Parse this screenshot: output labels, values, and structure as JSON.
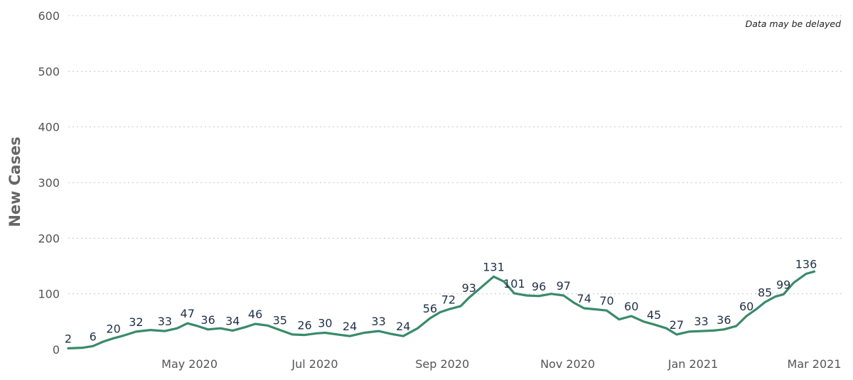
{
  "note": "Data may be delayed",
  "chart_data": {
    "type": "bar",
    "title": "",
    "ylabel": "New Cases",
    "xlabel": "",
    "ylim": [
      0,
      600
    ],
    "yticks": [
      0,
      100,
      200,
      300,
      400,
      500,
      600
    ],
    "ytick_labels": [
      "0",
      "100",
      "200",
      "300",
      "400",
      "500",
      "600"
    ],
    "grid": "horizontal dotted",
    "x_start": "2020-03-03",
    "x_end": "2021-03-06",
    "xticks": [
      {
        "date": "2020-05-01",
        "label": "May 2020"
      },
      {
        "date": "2020-07-01",
        "label": "Jul 2020"
      },
      {
        "date": "2020-09-01",
        "label": "Sep 2020"
      },
      {
        "date": "2020-11-01",
        "label": "Nov 2020"
      },
      {
        "date": "2021-01-01",
        "label": "Jan 2021"
      },
      {
        "date": "2021-03-01",
        "label": "Mar 2021"
      }
    ],
    "colors": {
      "bars": "#8fcbb6",
      "line": "#3a8a6b"
    },
    "series": [
      {
        "type": "line",
        "points": [
          [
            "2020-03-03",
            2
          ],
          [
            "2020-03-10",
            3
          ],
          [
            "2020-03-15",
            6
          ],
          [
            "2020-03-20",
            14
          ],
          [
            "2020-03-25",
            20
          ],
          [
            "2020-03-30",
            25
          ],
          [
            "2020-04-05",
            32
          ],
          [
            "2020-04-12",
            35
          ],
          [
            "2020-04-19",
            33
          ],
          [
            "2020-04-25",
            38
          ],
          [
            "2020-04-30",
            47
          ],
          [
            "2020-05-05",
            42
          ],
          [
            "2020-05-10",
            36
          ],
          [
            "2020-05-16",
            38
          ],
          [
            "2020-05-22",
            34
          ],
          [
            "2020-05-28",
            40
          ],
          [
            "2020-06-02",
            46
          ],
          [
            "2020-06-08",
            43
          ],
          [
            "2020-06-14",
            35
          ],
          [
            "2020-06-20",
            27
          ],
          [
            "2020-06-26",
            26
          ],
          [
            "2020-07-02",
            29
          ],
          [
            "2020-07-06",
            30
          ],
          [
            "2020-07-12",
            27
          ],
          [
            "2020-07-18",
            24
          ],
          [
            "2020-07-25",
            30
          ],
          [
            "2020-08-01",
            33
          ],
          [
            "2020-08-07",
            28
          ],
          [
            "2020-08-13",
            24
          ],
          [
            "2020-08-20",
            38
          ],
          [
            "2020-08-26",
            56
          ],
          [
            "2020-08-31",
            67
          ],
          [
            "2020-09-04",
            72
          ],
          [
            "2020-09-10",
            78
          ],
          [
            "2020-09-14",
            93
          ],
          [
            "2020-09-20",
            112
          ],
          [
            "2020-09-26",
            131
          ],
          [
            "2020-10-01",
            122
          ],
          [
            "2020-10-06",
            101
          ],
          [
            "2020-10-12",
            97
          ],
          [
            "2020-10-18",
            96
          ],
          [
            "2020-10-24",
            100
          ],
          [
            "2020-10-30",
            97
          ],
          [
            "2020-11-04",
            84
          ],
          [
            "2020-11-09",
            74
          ],
          [
            "2020-11-15",
            72
          ],
          [
            "2020-11-20",
            70
          ],
          [
            "2020-11-26",
            54
          ],
          [
            "2020-12-02",
            60
          ],
          [
            "2020-12-08",
            50
          ],
          [
            "2020-12-13",
            45
          ],
          [
            "2020-12-19",
            38
          ],
          [
            "2020-12-24",
            27
          ],
          [
            "2020-12-30",
            32
          ],
          [
            "2021-01-05",
            33
          ],
          [
            "2021-01-11",
            34
          ],
          [
            "2021-01-16",
            36
          ],
          [
            "2021-01-22",
            42
          ],
          [
            "2021-01-27",
            60
          ],
          [
            "2021-02-01",
            73
          ],
          [
            "2021-02-05",
            85
          ],
          [
            "2021-02-10",
            95
          ],
          [
            "2021-02-14",
            99
          ],
          [
            "2021-02-19",
            120
          ],
          [
            "2021-02-25",
            136
          ],
          [
            "2021-03-01",
            140
          ]
        ]
      }
    ],
    "bar_values": []
  }
}
